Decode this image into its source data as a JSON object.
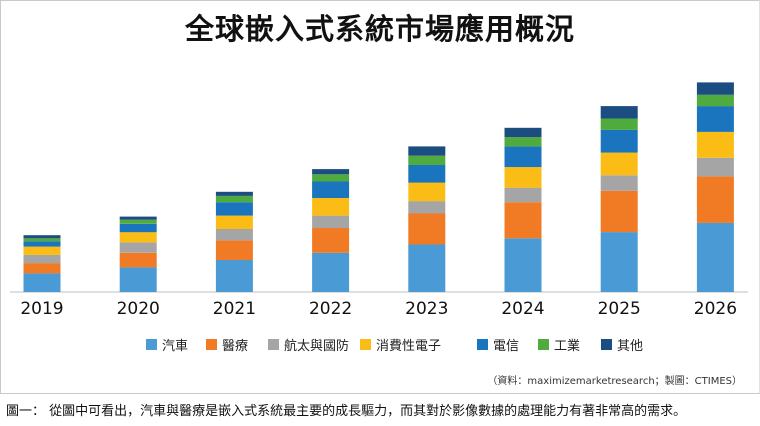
{
  "chart_data": {
    "type": "bar",
    "stacked": true,
    "title": "全球嵌入式系統市場應用概況",
    "categories": [
      "2019",
      "2020",
      "2021",
      "2022",
      "2023",
      "2024",
      "2025",
      "2026"
    ],
    "series": [
      {
        "name": "汽車",
        "color": "#4a9ad6",
        "values": [
          18,
          24,
          31,
          38,
          46,
          52,
          58,
          67
        ]
      },
      {
        "name": "醫療",
        "color": "#f07b24",
        "values": [
          10,
          14,
          19,
          24,
          30,
          35,
          40,
          45
        ]
      },
      {
        "name": "航太與國防",
        "color": "#a5a5a5",
        "values": [
          8,
          10,
          11,
          12,
          12,
          14,
          15,
          18
        ]
      },
      {
        "name": "消費性電子",
        "color": "#fbbd15",
        "values": [
          8,
          10,
          13,
          17,
          18,
          20,
          22,
          25
        ]
      },
      {
        "name": "電信",
        "color": "#1b74be",
        "values": [
          5,
          8,
          13,
          16,
          17,
          20,
          22,
          25
        ]
      },
      {
        "name": "工業",
        "color": "#4fab3e",
        "values": [
          3,
          4,
          6,
          7,
          9,
          9,
          11,
          11
        ]
      },
      {
        "name": "其他",
        "color": "#1c4d80",
        "values": [
          3,
          3,
          4,
          5,
          9,
          9,
          12,
          12
        ]
      }
    ],
    "ylim": [
      0,
      215
    ],
    "grid": false,
    "legend_position": "bottom"
  },
  "source_note": "（資料：maximizemarketresearch；製圖：CTIMES）",
  "caption": "圖一： 從圖中可看出，汽車與醫療是嵌入式系統最主要的成長驅力，而其對於影像數據的處理能力有著非常高的需求。"
}
